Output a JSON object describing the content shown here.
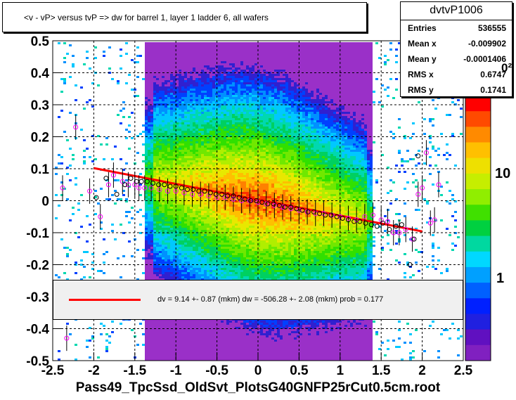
{
  "title": "<v - vP>       versus  tvP =>  dw for barrel 1, layer 1 ladder 6, all wafers",
  "xlabel": "Pass49_TpcSsd_OldSvt_PlotsG40GNFP25rCut0.5cm.root",
  "stats": {
    "name": "dvtvP1006",
    "rows": [
      {
        "label": "Entries",
        "value": "536555"
      },
      {
        "label": "Mean x",
        "value": "-0.009902"
      },
      {
        "label": "Mean y",
        "value": "-0.0001406"
      },
      {
        "label": "RMS x",
        "value": "0.6747"
      },
      {
        "label": "RMS y",
        "value": "0.1741"
      }
    ]
  },
  "fit": {
    "text": "dv =    9.14 +-  0.87 (mkm) dw = -506.28 +-  2.08 (mkm) prob = 0.177",
    "color": "#ff0000"
  },
  "colorbar": {
    "labels": [
      "10",
      "1"
    ],
    "partial_label": "0²",
    "colors": [
      "#ff0000",
      "#ff4a00",
      "#ff8a00",
      "#ffc000",
      "#eee000",
      "#c6ee00",
      "#90ee00",
      "#40e000",
      "#00d040",
      "#00d8a0",
      "#00d8ff",
      "#00a0ff",
      "#0060ff",
      "#0020ff",
      "#2020e0",
      "#6010c0",
      "#8020c0"
    ]
  },
  "chart_data": {
    "type": "heatmap",
    "xlim": [
      -2.5,
      2.5
    ],
    "ylim": [
      -0.5,
      0.5
    ],
    "grid": true,
    "x_ticks": [
      "-2.5",
      "-2",
      "-1.5",
      "-1",
      "-0.5",
      "0",
      "0.5",
      "1",
      "1.5",
      "2",
      "2.5"
    ],
    "y_ticks": [
      "0.5",
      "0.4",
      "0.3",
      "0.2",
      "0.1",
      "0",
      "-0.1",
      "-0.2",
      "-0.3",
      "-0.4",
      "-0.5"
    ],
    "fit_line": {
      "x": [
        -2.0,
        2.0
      ],
      "y": [
        0.102,
        -0.096
      ]
    },
    "profile_black": {
      "x": [
        -1.97,
        -1.85,
        -1.72,
        -1.62,
        -1.55,
        -1.48,
        -1.42,
        -1.35,
        -1.28,
        -1.21,
        -1.14,
        -1.07,
        -1.0,
        -0.93,
        -0.86,
        -0.79,
        -0.72,
        -0.65,
        -0.58,
        -0.51,
        -0.44,
        -0.37,
        -0.3,
        -0.23,
        -0.16,
        -0.09,
        -0.02,
        0.05,
        0.12,
        0.19,
        0.26,
        0.33,
        0.4,
        0.47,
        0.54,
        0.61,
        0.68,
        0.75,
        0.82,
        0.89,
        0.96,
        1.03,
        1.1,
        1.17,
        1.24,
        1.31,
        1.38,
        1.45,
        1.52,
        1.6,
        1.68,
        1.75,
        1.85,
        1.9,
        1.95
      ],
      "y": [
        0.01,
        0.07,
        0.02,
        0.05,
        0.07,
        0.06,
        0.06,
        0.06,
        0.055,
        0.05,
        0.05,
        0.045,
        0.045,
        0.04,
        0.035,
        0.035,
        0.03,
        0.03,
        0.025,
        0.02,
        0.02,
        0.015,
        0.015,
        0.01,
        0.005,
        0.0,
        0.0,
        -0.005,
        -0.01,
        -0.01,
        -0.015,
        -0.02,
        -0.02,
        -0.025,
        -0.03,
        -0.035,
        -0.035,
        -0.04,
        -0.045,
        -0.045,
        -0.05,
        -0.055,
        -0.06,
        -0.065,
        -0.065,
        -0.07,
        -0.075,
        -0.08,
        -0.07,
        -0.09,
        -0.08,
        -0.075,
        -0.2,
        -0.12,
        0.14
      ]
    },
    "profile_magenta": {
      "x": [
        -2.38,
        -2.22,
        -2.05,
        -1.92,
        -1.82,
        -1.76,
        -1.65,
        -1.58,
        -1.5,
        -1.45,
        -1.38,
        -1.3,
        -1.2,
        -1.1,
        -1.0,
        -0.9,
        -0.8,
        -0.7,
        -0.6,
        -0.5,
        -0.4,
        -0.3,
        -0.2,
        -0.1,
        0.0,
        0.1,
        0.2,
        0.3,
        0.4,
        0.5,
        0.6,
        0.7,
        0.8,
        0.9,
        1.0,
        1.1,
        1.2,
        1.3,
        1.4,
        1.5,
        1.58,
        1.65,
        1.72,
        1.8,
        1.88,
        1.95,
        2.0,
        2.05,
        2.1,
        2.15,
        2.2,
        -2.33
      ],
      "y": [
        0.04,
        0.23,
        0.03,
        -0.05,
        0.05,
        0.08,
        0.06,
        0.05,
        0.05,
        0.04,
        0.04,
        0.04,
        0.035,
        0.03,
        0.03,
        0.025,
        0.02,
        0.02,
        0.015,
        0.01,
        0.01,
        0.005,
        0.0,
        0.0,
        -0.005,
        -0.01,
        -0.015,
        -0.02,
        -0.025,
        -0.03,
        -0.035,
        -0.04,
        -0.04,
        -0.045,
        -0.05,
        -0.055,
        -0.06,
        -0.05,
        -0.045,
        -0.06,
        -0.065,
        -0.1,
        -0.1,
        -0.09,
        -0.12,
        0.02,
        0.04,
        0.15,
        -0.07,
        -0.06,
        0.05,
        -0.43
      ]
    }
  }
}
